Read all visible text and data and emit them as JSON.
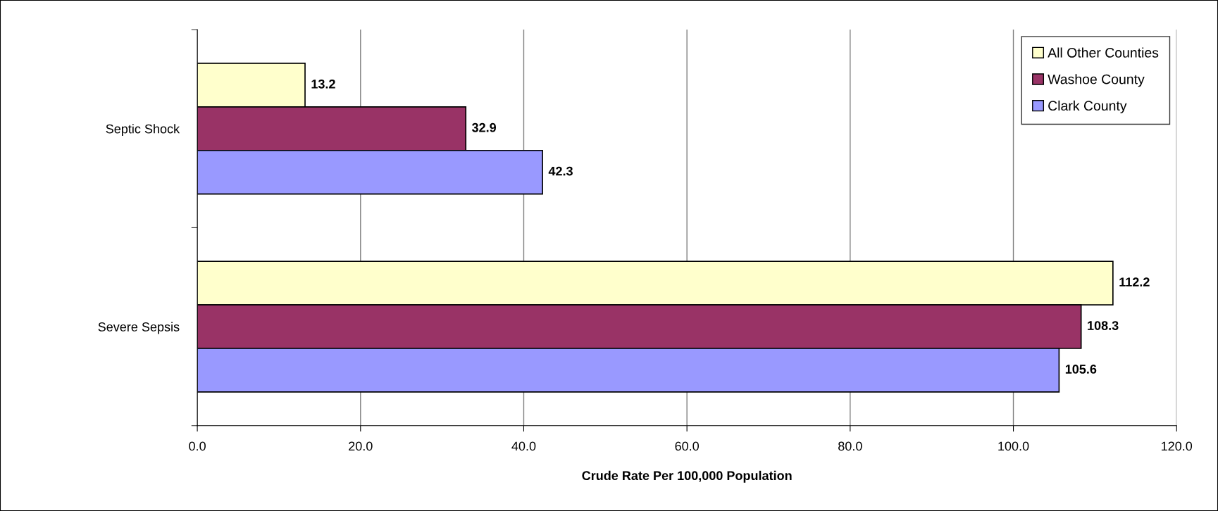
{
  "chart_data": {
    "type": "bar",
    "orientation": "horizontal",
    "xlabel": "Crude Rate Per 100,000 Population",
    "categories": [
      "Septic Shock",
      "Severe Sepsis"
    ],
    "series": [
      {
        "name": "All Other Counties",
        "color": "#ffffcc",
        "values": [
          13.2,
          112.2
        ]
      },
      {
        "name": "Washoe County",
        "color": "#993366",
        "values": [
          32.9,
          108.3
        ]
      },
      {
        "name": "Clark County",
        "color": "#9999ff",
        "values": [
          42.3,
          105.6
        ]
      }
    ],
    "xlim": [
      0,
      120
    ],
    "xticks": [
      {
        "value": 0,
        "label": "0.0"
      },
      {
        "value": 20,
        "label": "20.0"
      },
      {
        "value": 40,
        "label": "40.0"
      },
      {
        "value": 60,
        "label": "60.0"
      },
      {
        "value": 80,
        "label": "80.0"
      },
      {
        "value": 100,
        "label": "100.0"
      },
      {
        "value": 120,
        "label": "120.0"
      }
    ],
    "grid": "x",
    "legend": "top right",
    "data_labels": true
  }
}
